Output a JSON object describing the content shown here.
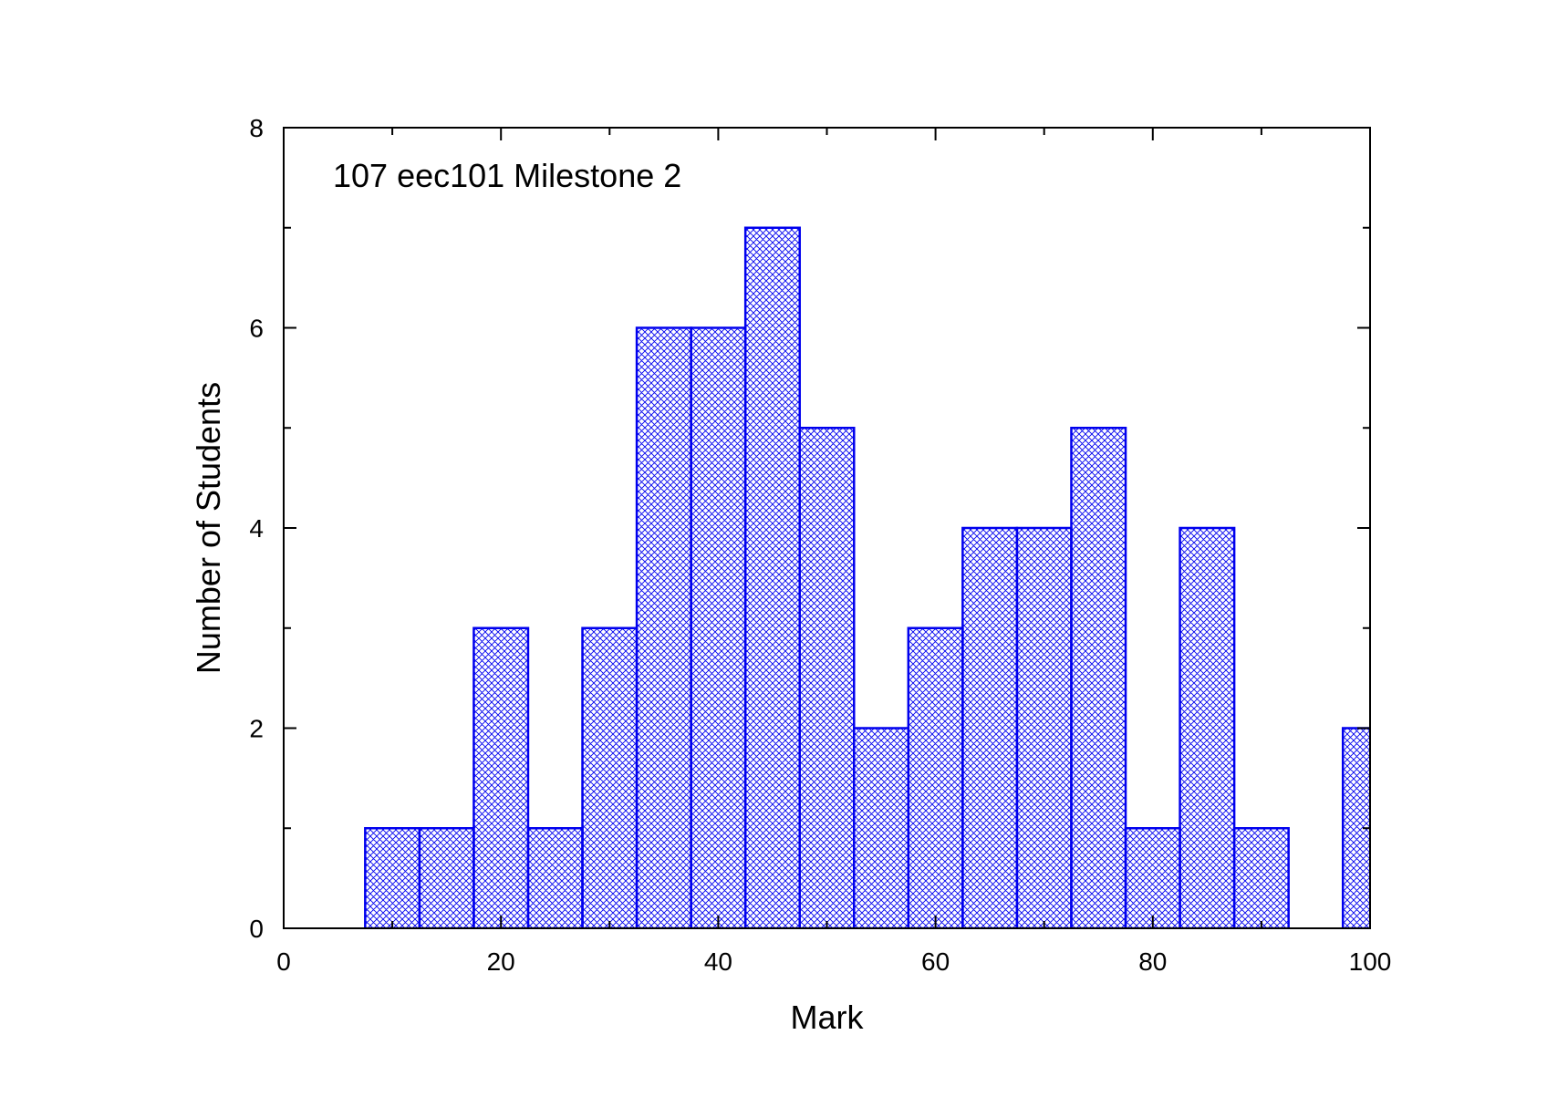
{
  "chart_data": {
    "type": "bar",
    "annotation": "107 eec101 Milestone 2",
    "xlabel": "Mark",
    "ylabel": "Number of Students",
    "xlim": [
      0,
      100
    ],
    "ylim": [
      0,
      8
    ],
    "xticks": [
      0,
      20,
      40,
      60,
      80,
      100
    ],
    "yticks": [
      0,
      2,
      4,
      6,
      8
    ],
    "bin_width": 5,
    "bin_centers": [
      10,
      15,
      20,
      25,
      30,
      35,
      40,
      45,
      50,
      55,
      60,
      65,
      70,
      75,
      80,
      85,
      90,
      95,
      100
    ],
    "values": [
      1,
      1,
      3,
      1,
      3,
      6,
      6,
      7,
      5,
      2,
      3,
      4,
      4,
      5,
      1,
      4,
      1,
      0,
      2
    ],
    "grid": false,
    "legend": "none",
    "bar_color": "#0000ee",
    "axis_color": "#000000"
  }
}
